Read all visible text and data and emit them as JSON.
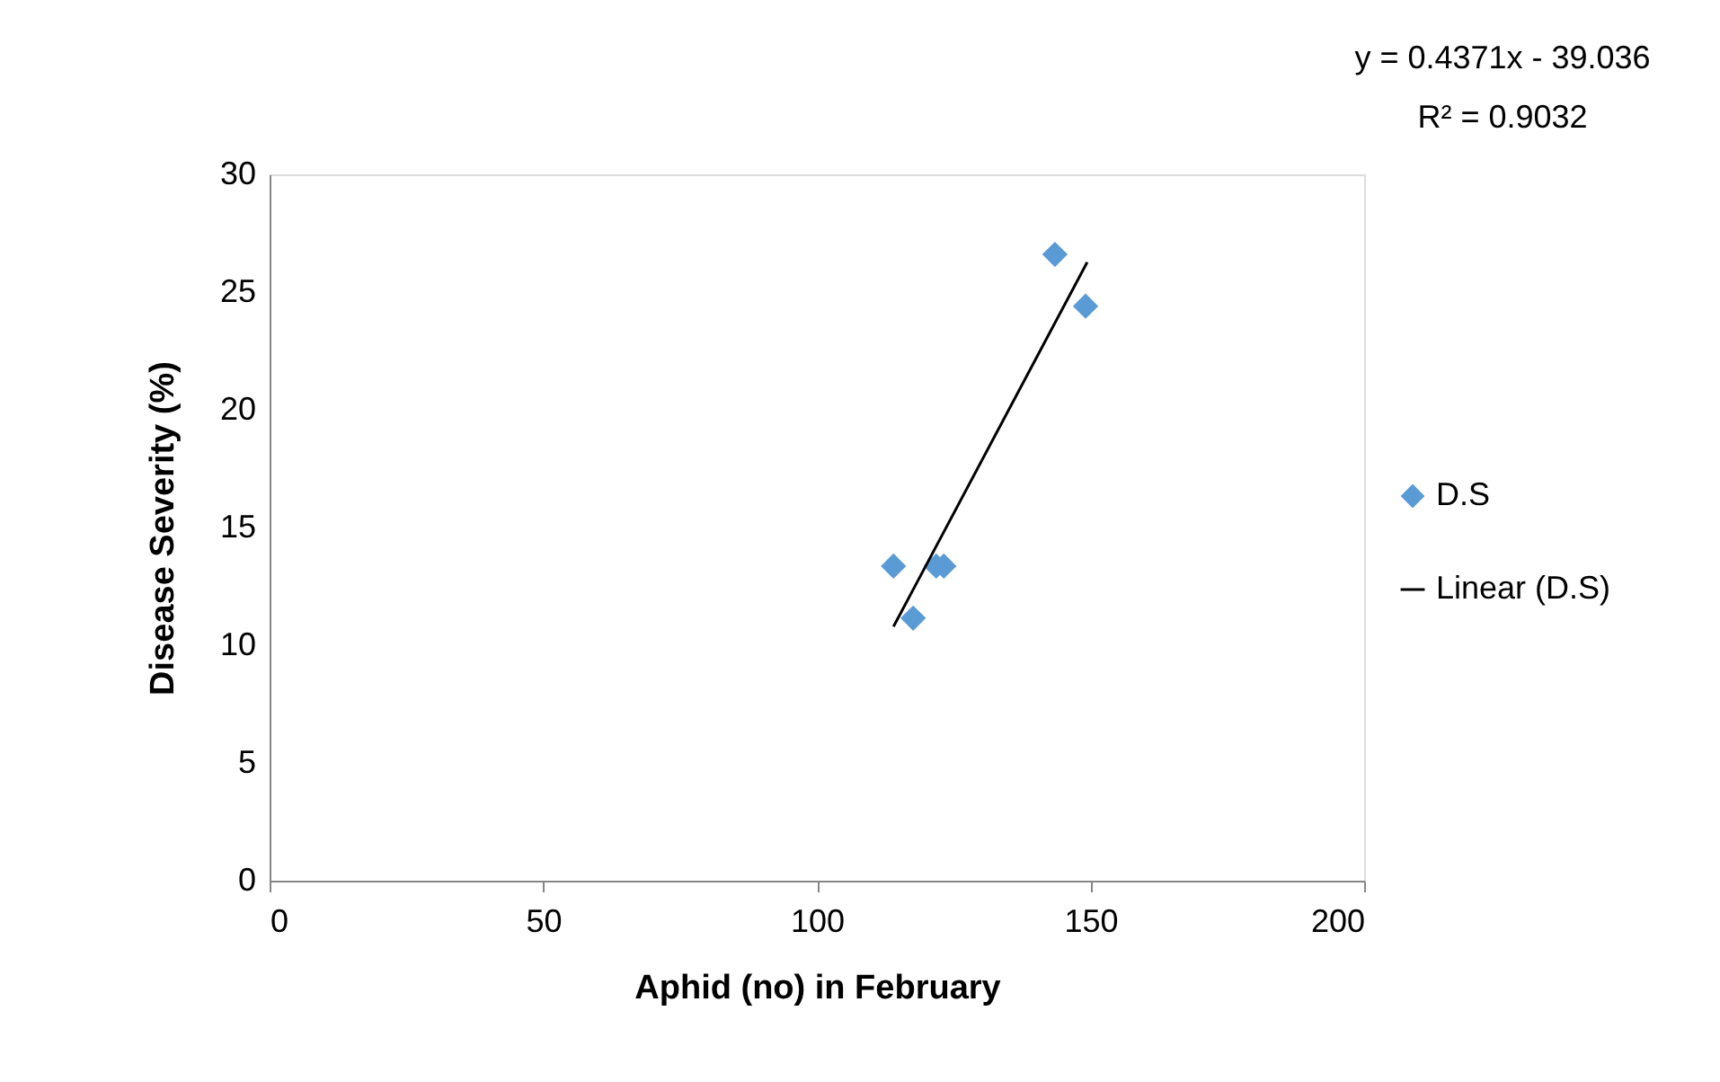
{
  "chart_data": {
    "type": "scatter",
    "xlabel": "Aphid (no) in February",
    "ylabel": "Disease Severity (%)",
    "annotations": [
      "y = 0.4371x - 39.036",
      "R² = 0.9032"
    ],
    "series": [
      {
        "name": "D.S",
        "color": "#5b9bd5",
        "marker": "diamond",
        "x": [
          114,
          117.6,
          121.8,
          123.2,
          143.5,
          149.1
        ],
        "values": [
          13.36,
          11.15,
          13.36,
          13.36,
          26.6,
          24.4
        ]
      },
      {
        "name": "Linear (D.S)",
        "type": "line",
        "color": "#000000",
        "line_style": "solid",
        "x": [
          114,
          149.4
        ],
        "values": [
          10.79,
          26.27
        ]
      }
    ],
    "xlim": [
      0,
      200
    ],
    "xticks": [
      0,
      50,
      100,
      150,
      200
    ],
    "ylim": [
      0,
      30
    ],
    "yticks": [
      0,
      5,
      10,
      15,
      20,
      25,
      30
    ],
    "grid": false,
    "legend": "right"
  }
}
